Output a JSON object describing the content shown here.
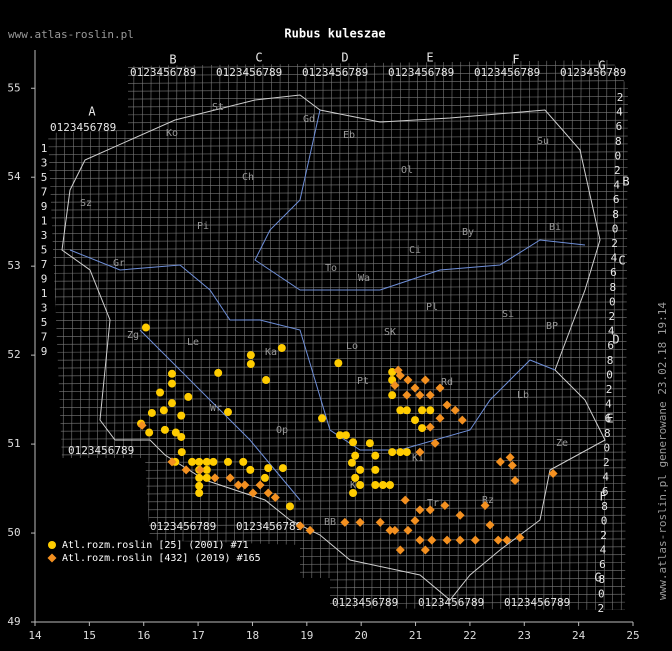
{
  "header": {
    "title": "Rubus kuleszae",
    "site": "www.atlas-roslin.pl",
    "footer": "www.atlas-roslin.pl generowane 23.02.18 19:14"
  },
  "map": {
    "xlim": [
      14,
      25
    ],
    "xticks": [
      14,
      15,
      16,
      17,
      18,
      19,
      20,
      21,
      22,
      23,
      24,
      25
    ],
    "ylim": [
      49,
      55.43
    ],
    "yticks": [
      49,
      50,
      51,
      52,
      53,
      54,
      55
    ],
    "grid_letters": [
      "A",
      "B",
      "C",
      "D",
      "E",
      "F",
      "G"
    ],
    "grid_digits": "0123456789",
    "row_digits_left": [
      "1",
      "3",
      "5",
      "7",
      "9"
    ],
    "row_digits_right": [
      "2",
      "4",
      "6",
      "8",
      "0"
    ],
    "regions": [
      "St",
      "Gd",
      "Eb",
      "Ko",
      "Su",
      "Ch",
      "Ol",
      "Pi",
      "Sz",
      "Bi",
      "By",
      "Ci",
      "To",
      "Gr",
      "Wa",
      "Pl",
      "Si",
      "Zg",
      "Le",
      "Ka",
      "Lo",
      "SK",
      "BP",
      "Pt",
      "Lb",
      "Wr",
      "Rd",
      "Op",
      "Ze",
      "Kt",
      "Ki",
      "Tr",
      "Rz",
      "BB"
    ],
    "series": [
      {
        "name": "Atl.rozm.roslin [25] (2001) #71",
        "color": "#ffcc00",
        "marker": "circle",
        "lon": [
          16.04,
          17.97,
          17.97,
          18.54,
          19.58,
          18.25,
          17.37,
          16.52,
          16.52,
          16.3,
          16.52,
          16.82,
          16.69,
          16.37,
          16.15,
          16.39,
          16.59,
          15.95,
          16.1,
          16.69,
          17.55,
          16.7,
          16.58,
          16.89,
          17.02,
          17.16,
          17.28,
          17.02,
          17.16,
          17.02,
          17.16,
          17.02,
          17.02,
          17.55,
          17.83,
          17.96,
          18.29,
          18.56,
          18.23,
          18.69,
          19.28,
          19.61,
          19.72,
          19.85,
          19.89,
          20.16,
          19.83,
          19.98,
          19.89,
          19.98,
          19.85,
          20.26,
          20.26,
          20.26,
          20.4,
          20.53,
          20.57,
          20.57,
          20.57,
          20.72,
          20.84,
          20.99,
          21.12,
          21.27,
          20.57,
          20.72,
          20.84,
          21.12
        ],
        "lat": [
          52.31,
          52.0,
          51.9,
          52.08,
          51.91,
          51.72,
          51.8,
          51.79,
          51.68,
          51.58,
          51.46,
          51.53,
          51.32,
          51.38,
          51.35,
          51.16,
          51.13,
          51.23,
          51.13,
          51.08,
          51.36,
          50.91,
          50.8,
          50.8,
          50.8,
          50.8,
          50.8,
          50.71,
          50.71,
          50.62,
          50.62,
          50.53,
          50.45,
          50.8,
          50.8,
          50.71,
          50.73,
          50.73,
          50.62,
          50.3,
          51.29,
          51.1,
          51.1,
          51.02,
          50.87,
          51.01,
          50.79,
          50.71,
          50.62,
          50.54,
          50.45,
          50.87,
          50.71,
          50.54,
          50.54,
          50.54,
          51.81,
          51.72,
          51.55,
          51.38,
          51.38,
          51.27,
          51.38,
          51.38,
          50.91,
          50.91,
          50.91,
          51.18
        ]
      },
      {
        "name": "Atl.rozm.roslin [432] (2019) #165",
        "color": "#f39020",
        "marker": "diamond",
        "lon": [
          15.97,
          16.52,
          16.78,
          17.04,
          17.31,
          17.59,
          17.74,
          17.86,
          18.01,
          18.14,
          18.29,
          18.42,
          18.88,
          19.06,
          19.7,
          19.98,
          20.35,
          20.62,
          20.86,
          21.08,
          21.3,
          21.58,
          21.82,
          22.1,
          22.37,
          22.52,
          22.68,
          22.92,
          22.28,
          22.56,
          22.78,
          22.83,
          23.53,
          20.72,
          20.86,
          20.99,
          21.18,
          21.27,
          21.45,
          21.58,
          21.73,
          21.86,
          21.45,
          21.08,
          20.68,
          20.62,
          20.84,
          21.27,
          21.36,
          21.08,
          20.81,
          21.08,
          21.27,
          21.54,
          21.82,
          20.99,
          20.53,
          20.72,
          21.18,
          22.74
        ],
        "lat": [
          51.21,
          50.8,
          50.71,
          50.71,
          50.62,
          50.62,
          50.54,
          50.54,
          50.45,
          50.54,
          50.45,
          50.4,
          50.08,
          50.03,
          50.12,
          50.12,
          50.12,
          50.03,
          50.03,
          49.92,
          49.92,
          49.92,
          49.92,
          49.92,
          50.09,
          49.92,
          49.92,
          49.95,
          50.31,
          50.8,
          50.76,
          50.59,
          50.67,
          51.77,
          51.72,
          51.63,
          51.72,
          51.55,
          51.63,
          51.44,
          51.38,
          51.27,
          51.29,
          51.55,
          51.83,
          51.66,
          51.55,
          51.19,
          51.01,
          50.91,
          50.37,
          50.26,
          50.26,
          50.31,
          50.2,
          50.14,
          50.03,
          49.81,
          49.81,
          50.85
        ]
      }
    ]
  }
}
